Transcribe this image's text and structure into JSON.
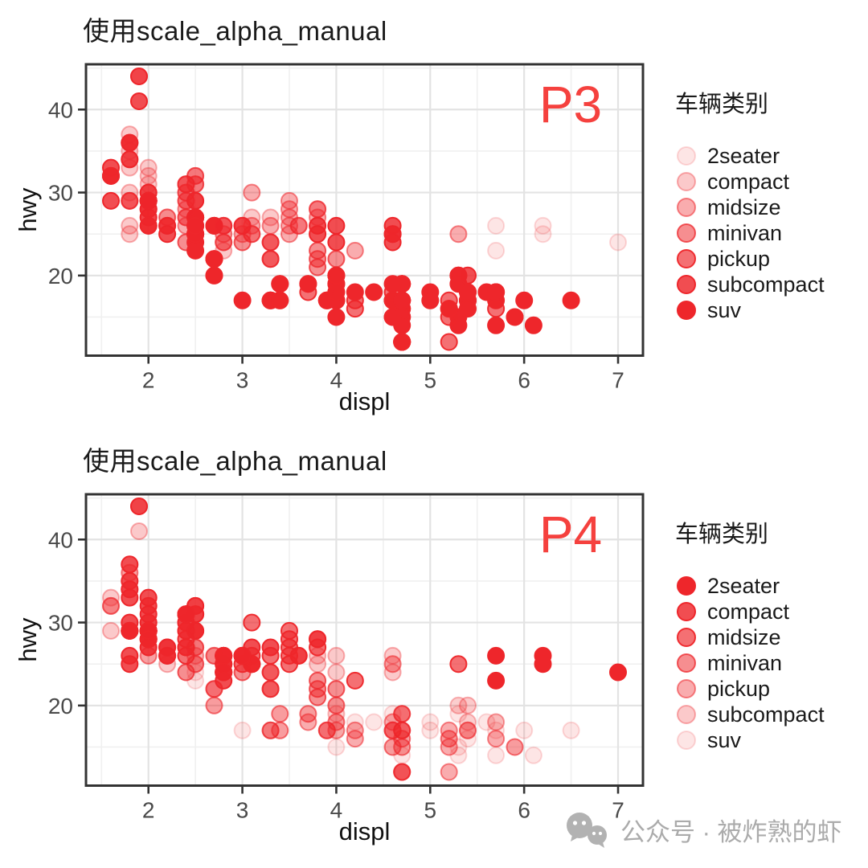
{
  "watermark": {
    "text": "公众号 · 被炸熟的虾"
  },
  "chart_data": {
    "type": "scatter",
    "source_note": "displ vs hwy scatter, points colored red with class-mapped alpha",
    "classes": [
      "2seater",
      "compact",
      "midsize",
      "minivan",
      "pickup",
      "subcompact",
      "suv"
    ],
    "point_color": "#EE262B",
    "annotation_color": "#F5413E",
    "grid": {
      "major": "#E3E3E3",
      "minor": "#F0F0F0",
      "border": "#333333",
      "tick": "#333333",
      "tick_label": "#4A4A4A"
    },
    "panels": [
      {
        "title": "使用scale_alpha_manual",
        "annotation": "P3",
        "xlabel": "displ",
        "ylabel": "hwy",
        "legend_title": "车辆类别",
        "x_ticks": [
          2,
          3,
          4,
          5,
          6,
          7
        ],
        "y_ticks": [
          20,
          30,
          40
        ],
        "xlim": [
          1.335,
          7.265
        ],
        "ylim": [
          10.35,
          45.45
        ],
        "alpha_values": [
          0.12,
          0.25,
          0.38,
          0.52,
          0.66,
          0.82,
          1
        ]
      },
      {
        "title": "使用scale_alpha_manual",
        "annotation": "P4",
        "xlabel": "displ",
        "ylabel": "hwy",
        "legend_title": "车辆类别",
        "x_ticks": [
          2,
          3,
          4,
          5,
          6,
          7
        ],
        "y_ticks": [
          20,
          30,
          40
        ],
        "xlim": [
          1.335,
          7.265
        ],
        "ylim": [
          10.35,
          45.45
        ],
        "alpha_values": [
          1,
          0.82,
          0.66,
          0.52,
          0.38,
          0.25,
          0.12
        ]
      }
    ],
    "points": [
      [
        1.8,
        29,
        1
      ],
      [
        1.8,
        29,
        1
      ],
      [
        2,
        31,
        1
      ],
      [
        2,
        30,
        1
      ],
      [
        2.8,
        26,
        1
      ],
      [
        2.8,
        26,
        1
      ],
      [
        3.1,
        27,
        1
      ],
      [
        1.8,
        26,
        1
      ],
      [
        1.8,
        25,
        1
      ],
      [
        2,
        28,
        1
      ],
      [
        2,
        27,
        1
      ],
      [
        2.8,
        25,
        1
      ],
      [
        2.8,
        25,
        1
      ],
      [
        3.1,
        25,
        1
      ],
      [
        3.1,
        25,
        1
      ],
      [
        2.8,
        24,
        2
      ],
      [
        3.1,
        25,
        2
      ],
      [
        4.2,
        23,
        2
      ],
      [
        5.3,
        20,
        6
      ],
      [
        5.3,
        15,
        6
      ],
      [
        5.3,
        20,
        6
      ],
      [
        5.7,
        17,
        6
      ],
      [
        6,
        17,
        6
      ],
      [
        5.7,
        26,
        0
      ],
      [
        5.7,
        23,
        0
      ],
      [
        6.2,
        26,
        0
      ],
      [
        6.2,
        25,
        0
      ],
      [
        7,
        24,
        0
      ],
      [
        5.3,
        14,
        6
      ],
      [
        5.3,
        19,
        6
      ],
      [
        5.7,
        14,
        6
      ],
      [
        6.5,
        17,
        6
      ],
      [
        2.4,
        27,
        2
      ],
      [
        2.4,
        30,
        2
      ],
      [
        3.1,
        26,
        2
      ],
      [
        3.5,
        29,
        2
      ],
      [
        3.6,
        26,
        2
      ],
      [
        2.4,
        24,
        3
      ],
      [
        3,
        24,
        3
      ],
      [
        3.3,
        22,
        3
      ],
      [
        3.3,
        22,
        3
      ],
      [
        3.3,
        24,
        3
      ],
      [
        3.3,
        24,
        3
      ],
      [
        3.3,
        17,
        3
      ],
      [
        3.8,
        22,
        3
      ],
      [
        3.8,
        21,
        3
      ],
      [
        3.8,
        23,
        3
      ],
      [
        4,
        22,
        3
      ],
      [
        3.7,
        19,
        4
      ],
      [
        3.7,
        18,
        4
      ],
      [
        3.9,
        17,
        4
      ],
      [
        3.9,
        17,
        4
      ],
      [
        4.7,
        19,
        4
      ],
      [
        4.7,
        19,
        4
      ],
      [
        4.7,
        12,
        4
      ],
      [
        5.2,
        17,
        4
      ],
      [
        5.2,
        15,
        4
      ],
      [
        3.9,
        17,
        6
      ],
      [
        4.7,
        16,
        6
      ],
      [
        4.7,
        12,
        6
      ],
      [
        4.7,
        17,
        6
      ],
      [
        5.2,
        16,
        6
      ],
      [
        5.7,
        18,
        6
      ],
      [
        5.9,
        15,
        6
      ],
      [
        4.7,
        16,
        4
      ],
      [
        4.7,
        12,
        4
      ],
      [
        4.7,
        17,
        4
      ],
      [
        4.7,
        15,
        4
      ],
      [
        4.7,
        17,
        4
      ],
      [
        4.7,
        12,
        4
      ],
      [
        5.2,
        16,
        4
      ],
      [
        5.2,
        12,
        4
      ],
      [
        5.7,
        16,
        4
      ],
      [
        5.9,
        15,
        4
      ],
      [
        4.6,
        17,
        6
      ],
      [
        5.4,
        17,
        6
      ],
      [
        5.4,
        18,
        6
      ],
      [
        4,
        17,
        6
      ],
      [
        4,
        17,
        6
      ],
      [
        4,
        17,
        6
      ],
      [
        4,
        18,
        6
      ],
      [
        4.6,
        17,
        6
      ],
      [
        5,
        18,
        6
      ],
      [
        4.2,
        17,
        4
      ],
      [
        4.2,
        16,
        4
      ],
      [
        4.6,
        18,
        4
      ],
      [
        4.6,
        15,
        4
      ],
      [
        4.6,
        17,
        4
      ],
      [
        4.6,
        17,
        4
      ],
      [
        5.4,
        17,
        4
      ],
      [
        3.8,
        26,
        5
      ],
      [
        3.8,
        25,
        5
      ],
      [
        4,
        26,
        5
      ],
      [
        4,
        24,
        5
      ],
      [
        4.6,
        25,
        5
      ],
      [
        4.6,
        25,
        5
      ],
      [
        4.6,
        26,
        5
      ],
      [
        4.6,
        24,
        5
      ],
      [
        5.4,
        20,
        5
      ],
      [
        1.6,
        33,
        5
      ],
      [
        1.6,
        32,
        5
      ],
      [
        1.6,
        32,
        5
      ],
      [
        1.6,
        29,
        5
      ],
      [
        1.6,
        32,
        5
      ],
      [
        1.8,
        34,
        5
      ],
      [
        1.8,
        36,
        5
      ],
      [
        1.8,
        36,
        5
      ],
      [
        2,
        29,
        5
      ],
      [
        2.4,
        26,
        2
      ],
      [
        2.4,
        27,
        2
      ],
      [
        2.4,
        30,
        2
      ],
      [
        2.4,
        31,
        2
      ],
      [
        2.5,
        31,
        2
      ],
      [
        2.5,
        32,
        2
      ],
      [
        3.3,
        26,
        2
      ],
      [
        2,
        26,
        5
      ],
      [
        2,
        27,
        5
      ],
      [
        2,
        30,
        5
      ],
      [
        2,
        29,
        5
      ],
      [
        2.7,
        26,
        5
      ],
      [
        2.7,
        26,
        5
      ],
      [
        2.7,
        26,
        5
      ],
      [
        3,
        17,
        6
      ],
      [
        3.7,
        19,
        6
      ],
      [
        4,
        20,
        6
      ],
      [
        4.7,
        15,
        6
      ],
      [
        4.7,
        19,
        6
      ],
      [
        4.7,
        14,
        6
      ],
      [
        5.7,
        18,
        6
      ],
      [
        6.1,
        14,
        6
      ],
      [
        4,
        15,
        6
      ],
      [
        4.2,
        18,
        6
      ],
      [
        4.4,
        18,
        6
      ],
      [
        4.6,
        15,
        6
      ],
      [
        5.4,
        17,
        6
      ],
      [
        5.4,
        16,
        6
      ],
      [
        5.4,
        18,
        6
      ],
      [
        4,
        17,
        6
      ],
      [
        4,
        19,
        6
      ],
      [
        4.6,
        19,
        6
      ],
      [
        5,
        17,
        6
      ],
      [
        2.4,
        29,
        2
      ],
      [
        2.4,
        29,
        2
      ],
      [
        2.5,
        31,
        2
      ],
      [
        2.5,
        32,
        2
      ],
      [
        3.5,
        27,
        2
      ],
      [
        3.5,
        26,
        2
      ],
      [
        3,
        26,
        2
      ],
      [
        3,
        25,
        2
      ],
      [
        3.5,
        25,
        2
      ],
      [
        3.3,
        17,
        6
      ],
      [
        3.3,
        17,
        6
      ],
      [
        4,
        20,
        6
      ],
      [
        5.6,
        18,
        6
      ],
      [
        3.1,
        30,
        2
      ],
      [
        3.8,
        28,
        2
      ],
      [
        3.8,
        27,
        2
      ],
      [
        3.8,
        28,
        2
      ],
      [
        5.3,
        25,
        2
      ],
      [
        2.5,
        25,
        6
      ],
      [
        2.5,
        24,
        6
      ],
      [
        2.5,
        27,
        6
      ],
      [
        2.5,
        25,
        6
      ],
      [
        2.5,
        26,
        6
      ],
      [
        2.5,
        23,
        6
      ],
      [
        2.2,
        26,
        5
      ],
      [
        2.2,
        25,
        5
      ],
      [
        2.5,
        25,
        5
      ],
      [
        2.5,
        27,
        5
      ],
      [
        2.5,
        27,
        5
      ],
      [
        2.5,
        25,
        5
      ],
      [
        2.5,
        27,
        5
      ],
      [
        2.5,
        26,
        5
      ],
      [
        2.7,
        20,
        6
      ],
      [
        2.7,
        22,
        6
      ],
      [
        3.4,
        19,
        6
      ],
      [
        3.4,
        17,
        6
      ],
      [
        4,
        19,
        6
      ],
      [
        4.7,
        17,
        6
      ],
      [
        2.2,
        26,
        2
      ],
      [
        2.2,
        27,
        2
      ],
      [
        2.4,
        28,
        2
      ],
      [
        2.4,
        31,
        2
      ],
      [
        3,
        26,
        2
      ],
      [
        3,
        26,
        2
      ],
      [
        3.5,
        28,
        2
      ],
      [
        2.2,
        26,
        1
      ],
      [
        2.2,
        27,
        1
      ],
      [
        2.4,
        31,
        1
      ],
      [
        2.4,
        31,
        1
      ],
      [
        3,
        26,
        1
      ],
      [
        3,
        26,
        1
      ],
      [
        3.3,
        27,
        1
      ],
      [
        1.8,
        30,
        1
      ],
      [
        1.8,
        33,
        1
      ],
      [
        1.8,
        34,
        1
      ],
      [
        1.8,
        35,
        1
      ],
      [
        1.8,
        37,
        1
      ],
      [
        4.7,
        17,
        6
      ],
      [
        5.7,
        18,
        6
      ],
      [
        2.7,
        20,
        4
      ],
      [
        2.7,
        22,
        4
      ],
      [
        2.7,
        22,
        4
      ],
      [
        3.4,
        19,
        4
      ],
      [
        3.4,
        17,
        4
      ],
      [
        4,
        18,
        4
      ],
      [
        4,
        20,
        4
      ],
      [
        2,
        29,
        1
      ],
      [
        2,
        29,
        1
      ],
      [
        2,
        28,
        1
      ],
      [
        2,
        29,
        1
      ],
      [
        2.8,
        24,
        1
      ],
      [
        1.9,
        44,
        1
      ],
      [
        2,
        29,
        1
      ],
      [
        2,
        33,
        1
      ],
      [
        2,
        32,
        1
      ],
      [
        2,
        29,
        1
      ],
      [
        2.5,
        29,
        1
      ],
      [
        2.5,
        29,
        1
      ],
      [
        2.8,
        24,
        1
      ],
      [
        2.8,
        23,
        1
      ],
      [
        1.9,
        44,
        5
      ],
      [
        1.9,
        41,
        5
      ],
      [
        2,
        29,
        5
      ],
      [
        2,
        26,
        5
      ],
      [
        2,
        28,
        5
      ],
      [
        2.5,
        29,
        5
      ],
      [
        1.8,
        29,
        2
      ],
      [
        1.8,
        29,
        2
      ],
      [
        2,
        28,
        2
      ],
      [
        2,
        29,
        2
      ],
      [
        2.8,
        26,
        2
      ],
      [
        2.8,
        26,
        2
      ],
      [
        3.6,
        26,
        2
      ]
    ]
  }
}
